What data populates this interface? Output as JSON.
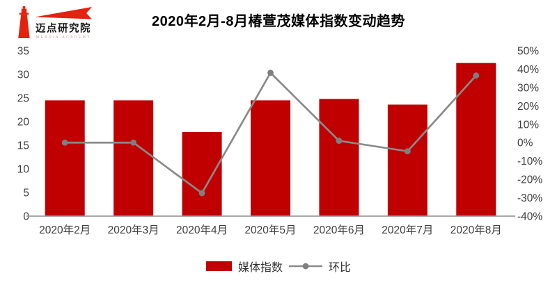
{
  "logo": {
    "name": "迈点研究院",
    "tagline": "MEADIN ACADEMY",
    "red": "#e3220f"
  },
  "header": {
    "title": "2020年2月-8月椿萱茂媒体指数变动趋势"
  },
  "legend": {
    "bar_label": "媒体指数",
    "line_label": "环比"
  },
  "colors": {
    "bar": "#c00000",
    "line": "#8a8a8a",
    "marker": "#7f7f7f",
    "axis_text": "#3f3f3f",
    "baseline": "#9b9b9b"
  },
  "chart_data": {
    "type": "bar",
    "title": "2020年2月-8月椿萱茂媒体指数变动趋势",
    "categories": [
      "2020年2月",
      "2020年3月",
      "2020年4月",
      "2020年5月",
      "2020年6月",
      "2020年7月",
      "2020年8月"
    ],
    "series": [
      {
        "name": "媒体指数",
        "type": "bar",
        "axis": "left",
        "color": "#c00000",
        "values": [
          24.5,
          24.5,
          17.8,
          24.5,
          24.8,
          23.6,
          32.4
        ]
      },
      {
        "name": "环比",
        "type": "line",
        "axis": "right",
        "unit": "%",
        "color": "#8a8a8a",
        "values": [
          0,
          0,
          -27.5,
          38,
          1,
          -4.7,
          36.5
        ]
      }
    ],
    "left_axis": {
      "min": 0,
      "max": 35,
      "step": 5,
      "ticks": [
        "35",
        "30",
        "25",
        "20",
        "15",
        "10",
        "5",
        "0"
      ]
    },
    "right_axis": {
      "min": -40,
      "max": 50,
      "step": 10,
      "ticks": [
        "50%",
        "40%",
        "30%",
        "20%",
        "10%",
        "0%",
        "-10%",
        "-20%",
        "-30%",
        "-40%"
      ]
    },
    "grid": false,
    "legend_position": "bottom"
  }
}
